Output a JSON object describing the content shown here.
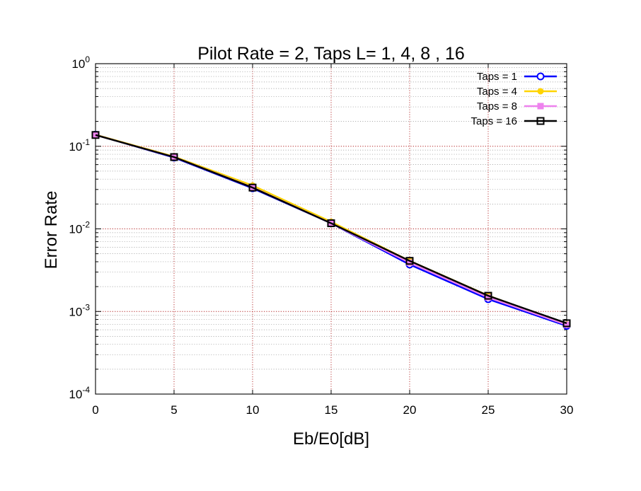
{
  "chart_data": {
    "type": "line",
    "title": "Pilot Rate = 2, Taps L= 1, 4, 8 , 16",
    "xlabel": "Eb/E0[dB]",
    "ylabel": "Error Rate",
    "x": [
      0,
      5,
      10,
      15,
      20,
      25,
      30
    ],
    "xlim": [
      0,
      30
    ],
    "ylim": [
      0.0001,
      1
    ],
    "yscale": "log",
    "grid": true,
    "legend_position": "top-right",
    "x_ticks": [
      "0",
      "5",
      "10",
      "15",
      "20",
      "25",
      "30"
    ],
    "y_ticks": [
      {
        "base": "10",
        "exp": "-4",
        "value": 0.0001
      },
      {
        "base": "10",
        "exp": "-3",
        "value": 0.001
      },
      {
        "base": "10",
        "exp": "-2",
        "value": 0.01
      },
      {
        "base": "10",
        "exp": "-1",
        "value": 0.1
      },
      {
        "base": "10",
        "exp": "0",
        "value": 1
      }
    ],
    "series": [
      {
        "name": "Taps = 1",
        "color": "#0000ff",
        "marker": "circle-open",
        "values": [
          0.138,
          0.073,
          0.031,
          0.0117,
          0.0037,
          0.00141,
          0.00067
        ]
      },
      {
        "name": "Taps = 4",
        "color": "#ffd400",
        "marker": "circle-filled",
        "values": [
          0.138,
          0.075,
          0.0335,
          0.0122,
          0.0041,
          0.00156,
          0.0007
        ]
      },
      {
        "name": "Taps = 8",
        "color": "#ee82ee",
        "marker": "square-filled",
        "values": [
          0.137,
          0.074,
          0.0318,
          0.0117,
          0.0039,
          0.00148,
          0.00069
        ]
      },
      {
        "name": "Taps = 16",
        "color": "#000000",
        "marker": "square-open",
        "values": [
          0.137,
          0.074,
          0.0316,
          0.0117,
          0.0041,
          0.00155,
          0.00072
        ]
      }
    ]
  }
}
